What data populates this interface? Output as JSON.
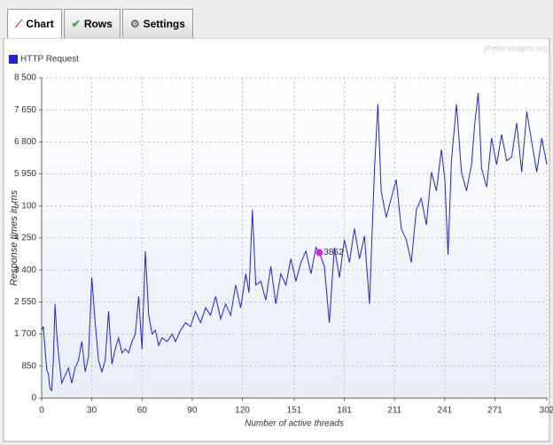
{
  "tabs": [
    "Chart",
    "Rows",
    "Settings"
  ],
  "chart_data": {
    "type": "line",
    "watermark": "jmeter-plugins.org",
    "xlabel": "Number of active threads",
    "ylabel": "Response times in ms",
    "legend": "top-left",
    "grid": true,
    "xlim": [
      0,
      302
    ],
    "xticks": [
      0,
      30,
      60,
      90,
      120,
      151,
      181,
      211,
      241,
      271,
      302
    ],
    "ylim": [
      0,
      8500
    ],
    "yticks": [
      0,
      850,
      {
        "value": 1700,
        "label": "1 700"
      },
      {
        "value": 2550,
        "label": "2 550"
      },
      {
        "value": 3400,
        "label": "3 400"
      },
      {
        "value": 4250,
        "label": "4 250"
      },
      {
        "value": 5100,
        "label": "5 100"
      },
      {
        "value": 5950,
        "label": "5 950"
      },
      {
        "value": 6800,
        "label": "6 800"
      },
      {
        "value": 7650,
        "label": "7 650"
      },
      {
        "value": 8500,
        "label": "8 500"
      }
    ],
    "annotation": {
      "text": "3862",
      "x": 166,
      "y": 3862,
      "color": "#e020e0"
    },
    "x": [
      0,
      1,
      3,
      4,
      5,
      6,
      7,
      8,
      9,
      10,
      12,
      14,
      16,
      18,
      20,
      22,
      24,
      26,
      28,
      30,
      32,
      34,
      36,
      38,
      40,
      42,
      44,
      46,
      48,
      50,
      52,
      54,
      56,
      58,
      60,
      62,
      64,
      66,
      68,
      70,
      72,
      75,
      78,
      80,
      83,
      86,
      89,
      92,
      95,
      98,
      101,
      104,
      107,
      110,
      113,
      116,
      119,
      122,
      124,
      126,
      128,
      131,
      134,
      137,
      140,
      143,
      146,
      149,
      152,
      155,
      158,
      161,
      164,
      166,
      169,
      172,
      175,
      178,
      181,
      184,
      187,
      190,
      193,
      196,
      199,
      201,
      203,
      206,
      209,
      212,
      215,
      218,
      221,
      224,
      227,
      230,
      233,
      236,
      239,
      241,
      243,
      245,
      248,
      251,
      254,
      257,
      259,
      261,
      263,
      266,
      269,
      272,
      275,
      278,
      281,
      284,
      287,
      290,
      293,
      296,
      299,
      302
    ],
    "series": [
      {
        "name": "HTTP Request",
        "color": "#2222dd",
        "values": [
          1800,
          1900,
          750,
          650,
          250,
          200,
          1000,
          2500,
          1700,
          1200,
          400,
          600,
          800,
          400,
          800,
          1000,
          1500,
          700,
          1100,
          3200,
          2000,
          1000,
          700,
          1000,
          2300,
          900,
          1300,
          1600,
          1200,
          1300,
          1200,
          1500,
          1700,
          2700,
          1300,
          3900,
          2200,
          1700,
          1800,
          1400,
          1600,
          1500,
          1700,
          1500,
          1800,
          2000,
          1900,
          2300,
          2000,
          2400,
          2200,
          2700,
          2100,
          2500,
          2200,
          3000,
          2400,
          3300,
          2800,
          5000,
          3000,
          3100,
          2600,
          3500,
          2500,
          3300,
          3000,
          3700,
          3100,
          3600,
          3900,
          3300,
          4000,
          3862,
          3500,
          2000,
          4000,
          3200,
          4200,
          3600,
          4500,
          3700,
          4300,
          2500,
          6100,
          7800,
          5500,
          4800,
          5300,
          5800,
          4500,
          4200,
          3600,
          5000,
          5300,
          4600,
          6000,
          5500,
          6600,
          5800,
          3800,
          6300,
          7800,
          6000,
          5500,
          6200,
          7300,
          8100,
          6100,
          5600,
          6900,
          6200,
          7000,
          6300,
          6400,
          7300,
          6000,
          7600,
          6800,
          6000,
          6900,
          6200
        ]
      }
    ]
  }
}
